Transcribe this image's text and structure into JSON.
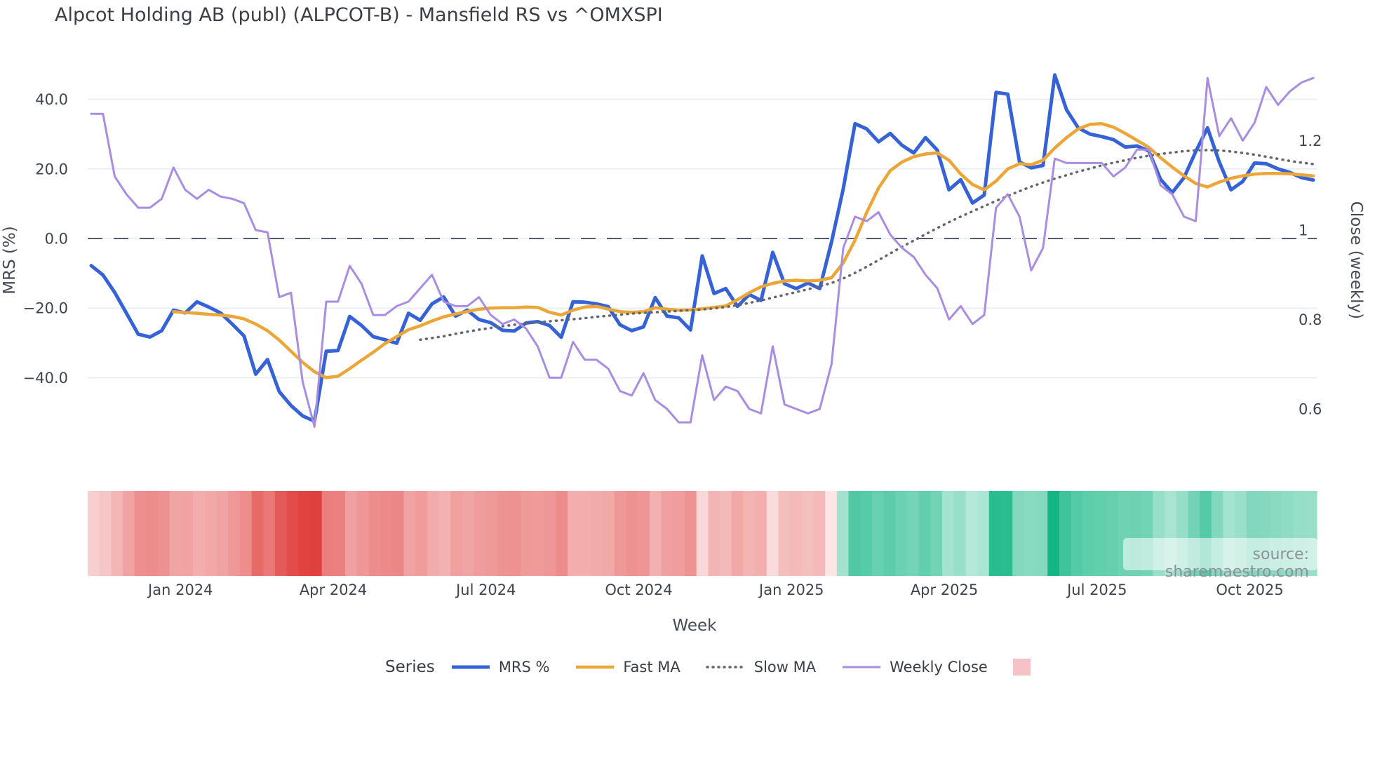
{
  "title": "Alpcot Holding AB (publ) (ALPCOT-B) - Mansfield RS vs ^OMXSPI",
  "source_note": "source: sharemaestro.com",
  "axes": {
    "left": {
      "title": "MRS (%)",
      "ticks": [
        {
          "label": "40.0",
          "value": 40
        },
        {
          "label": "20.0",
          "value": 20
        },
        {
          "label": "0.0",
          "value": 0
        },
        {
          "label": "−20.0",
          "value": -20
        },
        {
          "label": "−40.0",
          "value": -40
        }
      ]
    },
    "right": {
      "title": "Close (weekly)",
      "ticks": [
        {
          "label": "1.2",
          "value": 1.2
        },
        {
          "label": "1",
          "value": 1.0
        },
        {
          "label": "0.8",
          "value": 0.8
        },
        {
          "label": "0.6",
          "value": 0.6
        }
      ]
    },
    "x": {
      "title": "Week",
      "ticks": [
        {
          "label": "Jan 2024",
          "week": 7.6
        },
        {
          "label": "Apr 2024",
          "week": 20.6
        },
        {
          "label": "Jul 2024",
          "week": 33.6
        },
        {
          "label": "Oct 2024",
          "week": 46.6
        },
        {
          "label": "Jan 2025",
          "week": 59.6
        },
        {
          "label": "Apr 2025",
          "week": 72.6
        },
        {
          "label": "Jul 2025",
          "week": 85.6
        },
        {
          "label": "Oct 2025",
          "week": 98.6
        }
      ]
    }
  },
  "legend": {
    "series_label": "Series",
    "items": [
      {
        "label": "MRS %"
      },
      {
        "label": "Fast MA"
      },
      {
        "label": "Slow MA"
      },
      {
        "label": "Weekly Close"
      }
    ],
    "heatmap_swatch_color": "#f5c2c7"
  },
  "chart_data": {
    "type": "line",
    "title": "Alpcot Holding AB (publ) (ALPCOT-B) - Mansfield RS vs ^OMXSPI",
    "xlabel": "Week",
    "ylabel_left": "MRS (%)",
    "ylabel_right": "Close (weekly)",
    "x_unit": "weekly, Nov 2023 – Nov 2025",
    "n_points": 105,
    "ylim_left": [
      -60,
      52
    ],
    "ylim_right": [
      0.52,
      1.42
    ],
    "grid": "horizontal-left-ticks",
    "zero_line": {
      "axis": "left",
      "value": 0,
      "style": "dashed",
      "color": "#555c6e"
    },
    "legend_position": "bottom",
    "series": [
      {
        "name": "MRS %",
        "axis": "left",
        "color": "#3563d7",
        "width": 5,
        "style": "solid",
        "values": [
          -7.8,
          -10.5,
          -15.5,
          -21.5,
          -27.5,
          -28.3,
          -26.5,
          -20.6,
          -21.4,
          -18.2,
          -19.7,
          -21.4,
          -24.6,
          -28.0,
          -39.0,
          -34.8,
          -44.0,
          -48.0,
          -51.0,
          -52.5,
          -32.4,
          -32.2,
          -22.4,
          -25.0,
          -28.2,
          -29.1,
          -30.1,
          -21.5,
          -23.5,
          -18.8,
          -16.8,
          -22.3,
          -20.6,
          -23.3,
          -24.2,
          -26.4,
          -26.6,
          -24.3,
          -23.9,
          -25.0,
          -28.4,
          -18.2,
          -18.3,
          -18.8,
          -19.6,
          -24.8,
          -26.5,
          -25.4,
          -17.0,
          -22.3,
          -22.8,
          -26.3,
          -5.0,
          -15.8,
          -14.4,
          -19.5,
          -16.1,
          -17.8,
          -4.0,
          -13.0,
          -14.4,
          -12.8,
          -14.4,
          -1.0,
          14.3,
          33.0,
          31.5,
          27.8,
          30.2,
          26.8,
          24.6,
          29.0,
          25.4,
          14.0,
          16.9,
          10.2,
          12.5,
          42.0,
          41.5,
          22.0,
          20.3,
          21.0,
          47.0,
          37.0,
          31.8,
          30.0,
          29.3,
          28.4,
          26.3,
          26.6,
          25.2,
          17.0,
          13.2,
          17.5,
          25.0,
          31.8,
          22.0,
          14.0,
          16.4,
          21.7,
          21.5,
          20.0,
          19.0,
          17.5,
          16.8
        ]
      },
      {
        "name": "Fast MA",
        "axis": "left",
        "color": "#eba637",
        "width": 4.5,
        "style": "solid",
        "values": [
          null,
          null,
          null,
          null,
          null,
          null,
          null,
          -21.0,
          -21.3,
          -21.5,
          -21.8,
          -22.0,
          -22.4,
          -23.1,
          -24.6,
          -26.5,
          -29.2,
          -32.4,
          -35.6,
          -38.3,
          -40.0,
          -39.6,
          -37.4,
          -35.0,
          -32.7,
          -30.2,
          -28.2,
          -26.2,
          -25.1,
          -23.7,
          -22.5,
          -21.7,
          -21.0,
          -20.3,
          -20.0,
          -19.9,
          -19.9,
          -19.7,
          -19.8,
          -21.2,
          -22.0,
          -20.6,
          -19.7,
          -19.5,
          -20.3,
          -21.0,
          -21.2,
          -21.0,
          -19.9,
          -20.3,
          -20.6,
          -20.5,
          -20.2,
          -19.8,
          -19.4,
          -17.6,
          -15.6,
          -13.9,
          -12.9,
          -12.2,
          -12.0,
          -12.2,
          -12.0,
          -11.3,
          -7.0,
          -0.5,
          7.5,
          14.5,
          19.5,
          22.0,
          23.5,
          24.3,
          24.6,
          22.5,
          18.5,
          15.5,
          14.0,
          16.5,
          20.0,
          21.5,
          21.2,
          22.5,
          26.0,
          29.0,
          31.5,
          32.8,
          33.0,
          32.0,
          30.2,
          28.2,
          26.2,
          23.2,
          20.5,
          18.0,
          15.8,
          14.8,
          16.2,
          17.3,
          18.0,
          18.5,
          18.7,
          18.7,
          18.6,
          18.3,
          18.0
        ]
      },
      {
        "name": "Slow MA",
        "axis": "left",
        "color": "#62666d",
        "width": 3.5,
        "style": "dotted",
        "values": [
          null,
          null,
          null,
          null,
          null,
          null,
          null,
          null,
          null,
          null,
          null,
          null,
          null,
          null,
          null,
          null,
          null,
          null,
          null,
          null,
          null,
          null,
          null,
          null,
          null,
          null,
          null,
          null,
          -29.1,
          -28.6,
          -28.1,
          -27.4,
          -26.8,
          -26.2,
          -25.7,
          -25.2,
          -24.8,
          -24.4,
          -24.1,
          -23.8,
          -23.5,
          -23.2,
          -22.9,
          -22.5,
          -22.2,
          -21.9,
          -21.6,
          -21.4,
          -21.2,
          -21.0,
          -20.8,
          -20.6,
          -20.4,
          -20.1,
          -19.7,
          -19.2,
          -18.5,
          -17.8,
          -17.0,
          -16.2,
          -15.4,
          -14.6,
          -13.7,
          -12.8,
          -11.5,
          -9.9,
          -8.1,
          -6.2,
          -4.3,
          -2.4,
          -0.6,
          1.2,
          3.0,
          4.7,
          6.3,
          7.8,
          9.3,
          10.8,
          12.2,
          13.6,
          14.9,
          16.1,
          17.2,
          18.2,
          19.2,
          20.1,
          21.0,
          21.8,
          22.5,
          23.2,
          23.8,
          24.3,
          24.7,
          25.1,
          25.3,
          25.4,
          25.3,
          25.0,
          24.6,
          24.1,
          23.5,
          22.9,
          22.3,
          21.8,
          21.4
        ]
      },
      {
        "name": "Weekly Close",
        "axis": "right",
        "color": "#a98de3",
        "width": 3,
        "style": "solid",
        "values": [
          1.26,
          1.26,
          1.12,
          1.08,
          1.05,
          1.05,
          1.07,
          1.14,
          1.09,
          1.07,
          1.09,
          1.075,
          1.07,
          1.06,
          1.0,
          0.995,
          0.85,
          0.86,
          0.66,
          0.56,
          0.84,
          0.84,
          0.92,
          0.88,
          0.81,
          0.81,
          0.83,
          0.84,
          0.87,
          0.9,
          0.84,
          0.83,
          0.83,
          0.85,
          0.81,
          0.79,
          0.8,
          0.78,
          0.74,
          0.67,
          0.67,
          0.75,
          0.71,
          0.71,
          0.69,
          0.64,
          0.63,
          0.68,
          0.62,
          0.6,
          0.57,
          0.57,
          0.72,
          0.62,
          0.65,
          0.64,
          0.6,
          0.59,
          0.74,
          0.61,
          0.6,
          0.59,
          0.6,
          0.7,
          0.96,
          1.03,
          1.02,
          1.04,
          0.99,
          0.96,
          0.94,
          0.9,
          0.87,
          0.8,
          0.83,
          0.79,
          0.81,
          1.05,
          1.08,
          1.03,
          0.91,
          0.96,
          1.16,
          1.15,
          1.15,
          1.15,
          1.15,
          1.12,
          1.14,
          1.18,
          1.18,
          1.1,
          1.08,
          1.03,
          1.02,
          1.34,
          1.21,
          1.25,
          1.2,
          1.24,
          1.32,
          1.28,
          1.31,
          1.33,
          1.34
        ]
      }
    ],
    "heatmap_strip": {
      "source_series": "MRS %",
      "negative_color": "#e0403e",
      "negative_max": 52,
      "positive_color": "#12b583",
      "positive_max": 47
    }
  }
}
